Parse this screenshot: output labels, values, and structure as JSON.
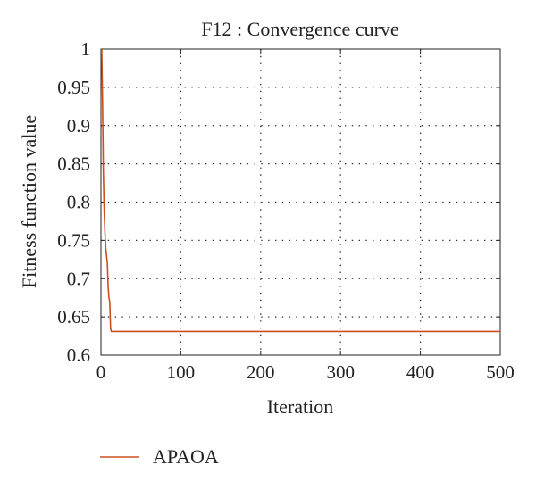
{
  "chart_data": {
    "type": "line",
    "title": "F12 : Convergence curve",
    "xlabel": "Iteration",
    "ylabel": "Fitness function value",
    "xlim": [
      0,
      500
    ],
    "ylim": [
      0.6,
      1.0
    ],
    "x_ticks": [
      0,
      100,
      200,
      300,
      400,
      500
    ],
    "y_ticks": [
      0.6,
      0.65,
      0.7,
      0.75,
      0.8,
      0.85,
      0.9,
      0.95,
      1.0
    ],
    "x_tick_labels": [
      "0",
      "100",
      "200",
      "300",
      "400",
      "500"
    ],
    "y_tick_labels": [
      "0.6",
      "0.65",
      "0.7",
      "0.75",
      "0.8",
      "0.85",
      "0.9",
      "0.95",
      "1"
    ],
    "grid": true,
    "legend_position": "bottom-left",
    "series": [
      {
        "name": "APAOA",
        "color": "#c8501e",
        "x": [
          1,
          2,
          3,
          4,
          5,
          6,
          7,
          8,
          9,
          10,
          11,
          12,
          13,
          14,
          20,
          50,
          100,
          200,
          300,
          400,
          500
        ],
        "values": [
          1.0,
          0.93,
          0.84,
          0.79,
          0.76,
          0.74,
          0.73,
          0.72,
          0.69,
          0.675,
          0.67,
          0.635,
          0.631,
          0.631,
          0.631,
          0.631,
          0.631,
          0.631,
          0.631,
          0.631,
          0.631
        ]
      }
    ]
  }
}
